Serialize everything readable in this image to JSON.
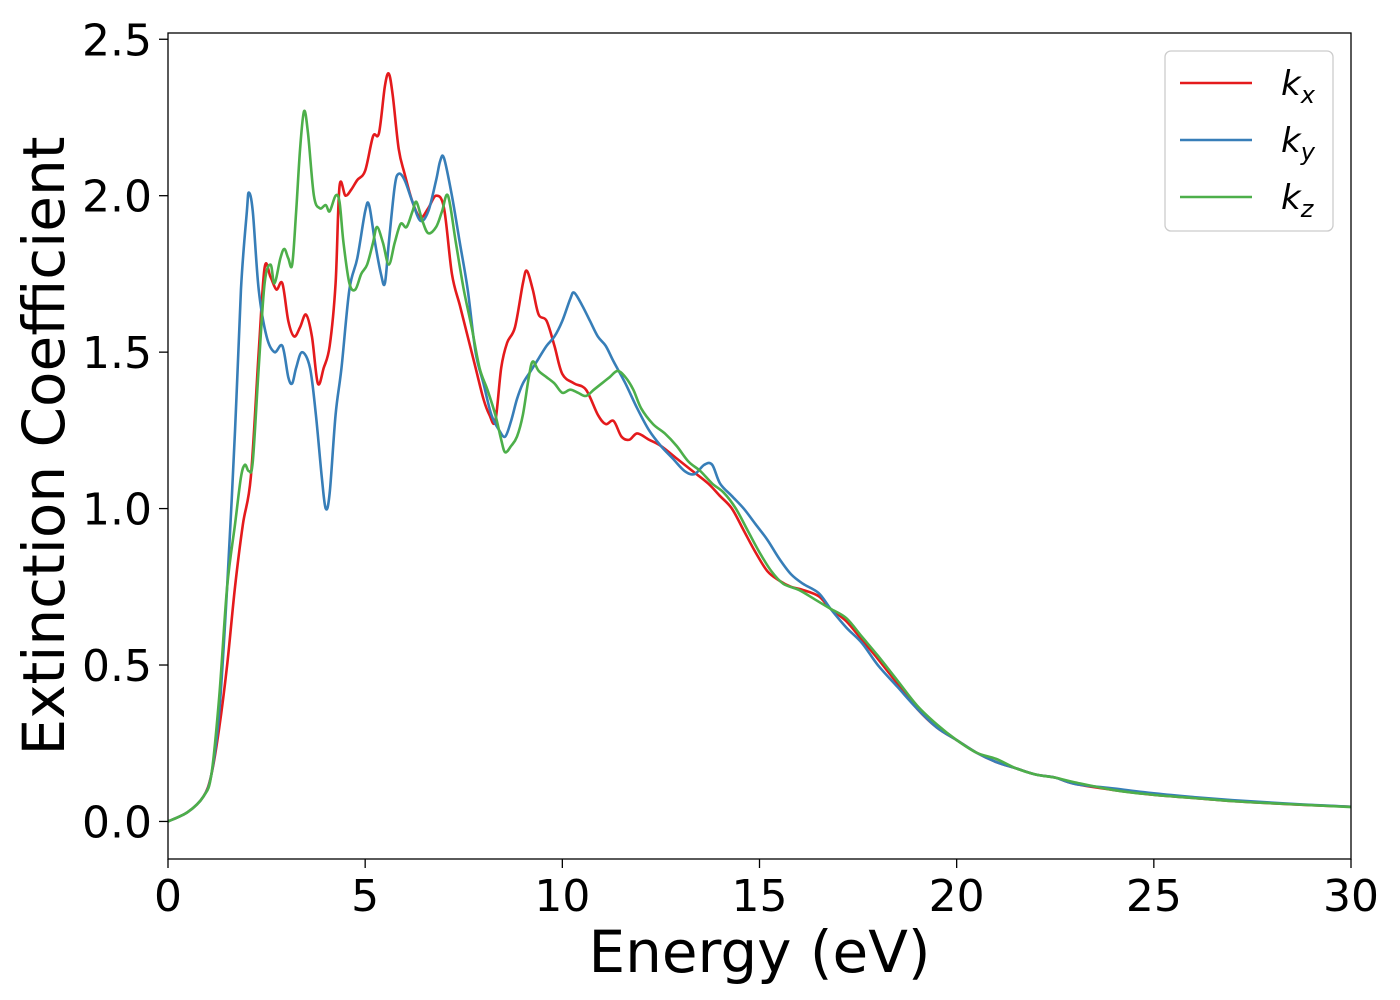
{
  "chart_data": {
    "type": "line",
    "title": "",
    "xlabel": "Energy (eV)",
    "ylabel": "Extinction Coefficient",
    "xlim": [
      0,
      30
    ],
    "ylim": [
      -0.12,
      2.52
    ],
    "xticks": [
      0,
      5,
      10,
      15,
      20,
      25,
      30
    ],
    "xtick_labels": [
      "0",
      "5",
      "10",
      "15",
      "20",
      "25",
      "30"
    ],
    "yticks": [
      0.0,
      0.5,
      1.0,
      1.5,
      2.0,
      2.5
    ],
    "ytick_labels": [
      "0.0",
      "0.5",
      "1.0",
      "1.5",
      "2.0",
      "2.5"
    ],
    "grid": false,
    "legend_position": "top-right",
    "series": [
      {
        "name": "k",
        "sub": "x",
        "color": "#e41a1c",
        "x": [
          0,
          0.5,
          0.9,
          1.1,
          1.3,
          1.5,
          1.7,
          1.9,
          2.1,
          2.3,
          2.45,
          2.6,
          2.75,
          2.9,
          3.05,
          3.2,
          3.35,
          3.5,
          3.65,
          3.8,
          3.95,
          4.1,
          4.25,
          4.35,
          4.5,
          4.65,
          4.8,
          5.0,
          5.2,
          5.35,
          5.5,
          5.6,
          5.7,
          5.85,
          6.0,
          6.2,
          6.4,
          6.6,
          6.8,
          7.0,
          7.2,
          7.4,
          7.6,
          7.8,
          8.0,
          8.15,
          8.3,
          8.45,
          8.6,
          8.8,
          9.0,
          9.1,
          9.25,
          9.4,
          9.6,
          9.8,
          10.0,
          10.3,
          10.6,
          10.9,
          11.1,
          11.3,
          11.5,
          11.7,
          11.9,
          12.2,
          12.5,
          12.9,
          13.3,
          13.7,
          14.0,
          14.3,
          14.6,
          14.9,
          15.2,
          15.5,
          15.8,
          16.1,
          16.5,
          16.8,
          17.2,
          17.6,
          18.0,
          18.5,
          19.0,
          19.5,
          20.0,
          20.5,
          21.0,
          21.5,
          22.0,
          22.5,
          23,
          24,
          25,
          26,
          27,
          28,
          29,
          30
        ],
        "y": [
          0.0,
          0.03,
          0.08,
          0.15,
          0.3,
          0.5,
          0.75,
          0.95,
          1.1,
          1.5,
          1.77,
          1.74,
          1.7,
          1.72,
          1.6,
          1.55,
          1.58,
          1.62,
          1.55,
          1.4,
          1.45,
          1.52,
          1.72,
          2.03,
          2.0,
          2.02,
          2.05,
          2.08,
          2.19,
          2.2,
          2.35,
          2.39,
          2.32,
          2.15,
          2.07,
          1.98,
          1.93,
          1.96,
          2.0,
          1.96,
          1.75,
          1.65,
          1.55,
          1.45,
          1.35,
          1.3,
          1.28,
          1.45,
          1.53,
          1.58,
          1.72,
          1.76,
          1.7,
          1.62,
          1.6,
          1.52,
          1.43,
          1.4,
          1.38,
          1.3,
          1.27,
          1.28,
          1.23,
          1.22,
          1.24,
          1.22,
          1.2,
          1.16,
          1.12,
          1.08,
          1.04,
          1.0,
          0.93,
          0.86,
          0.8,
          0.77,
          0.75,
          0.74,
          0.72,
          0.68,
          0.64,
          0.58,
          0.52,
          0.44,
          0.36,
          0.3,
          0.26,
          0.22,
          0.19,
          0.17,
          0.15,
          0.14,
          0.12,
          0.1,
          0.085,
          0.075,
          0.065,
          0.058,
          0.052,
          0.047
        ]
      },
      {
        "name": "k",
        "sub": "y",
        "color": "#377eb8",
        "x": [
          0,
          0.5,
          0.9,
          1.1,
          1.3,
          1.5,
          1.7,
          1.85,
          2.0,
          2.05,
          2.15,
          2.3,
          2.5,
          2.7,
          2.9,
          3.05,
          3.15,
          3.25,
          3.4,
          3.6,
          3.75,
          3.9,
          4.0,
          4.1,
          4.25,
          4.4,
          4.6,
          4.8,
          5.0,
          5.1,
          5.25,
          5.4,
          5.5,
          5.6,
          5.75,
          5.85,
          6.0,
          6.2,
          6.4,
          6.6,
          6.8,
          6.9,
          7.0,
          7.2,
          7.4,
          7.6,
          7.8,
          8.0,
          8.2,
          8.4,
          8.55,
          8.7,
          8.85,
          9.0,
          9.2,
          9.4,
          9.6,
          9.8,
          10.0,
          10.2,
          10.3,
          10.5,
          10.7,
          10.9,
          11.1,
          11.3,
          11.6,
          11.9,
          12.2,
          12.5,
          12.8,
          13.1,
          13.35,
          13.6,
          13.8,
          14.0,
          14.3,
          14.6,
          14.9,
          15.2,
          15.5,
          15.8,
          16.1,
          16.5,
          16.8,
          17.2,
          17.6,
          18.0,
          18.5,
          19.0,
          19.5,
          20.0,
          20.5,
          21.0,
          21.5,
          22.0,
          22.5,
          23,
          24,
          25,
          26,
          27,
          28,
          29,
          30
        ],
        "y": [
          0.0,
          0.03,
          0.08,
          0.15,
          0.35,
          0.75,
          1.25,
          1.7,
          1.95,
          2.01,
          1.95,
          1.7,
          1.55,
          1.5,
          1.52,
          1.42,
          1.4,
          1.45,
          1.5,
          1.45,
          1.3,
          1.1,
          1.0,
          1.05,
          1.3,
          1.45,
          1.7,
          1.8,
          1.95,
          1.97,
          1.85,
          1.75,
          1.72,
          1.85,
          2.03,
          2.07,
          2.05,
          1.98,
          1.92,
          1.95,
          2.05,
          2.11,
          2.12,
          2.0,
          1.85,
          1.7,
          1.5,
          1.4,
          1.3,
          1.25,
          1.23,
          1.28,
          1.35,
          1.4,
          1.44,
          1.48,
          1.52,
          1.55,
          1.6,
          1.67,
          1.69,
          1.65,
          1.6,
          1.55,
          1.52,
          1.47,
          1.4,
          1.32,
          1.25,
          1.2,
          1.16,
          1.12,
          1.11,
          1.14,
          1.14,
          1.08,
          1.04,
          1.0,
          0.95,
          0.9,
          0.84,
          0.79,
          0.76,
          0.73,
          0.68,
          0.62,
          0.57,
          0.5,
          0.43,
          0.36,
          0.3,
          0.26,
          0.22,
          0.19,
          0.17,
          0.15,
          0.14,
          0.12,
          0.105,
          0.09,
          0.078,
          0.068,
          0.06,
          0.053,
          0.047
        ]
      },
      {
        "name": "k",
        "sub": "z",
        "color": "#4daf4a",
        "x": [
          0,
          0.5,
          0.9,
          1.1,
          1.3,
          1.5,
          1.7,
          1.85,
          1.95,
          2.05,
          2.15,
          2.3,
          2.45,
          2.6,
          2.7,
          2.85,
          2.95,
          3.05,
          3.15,
          3.25,
          3.35,
          3.45,
          3.55,
          3.7,
          3.85,
          4.0,
          4.1,
          4.25,
          4.35,
          4.45,
          4.6,
          4.75,
          4.9,
          5.05,
          5.2,
          5.3,
          5.45,
          5.6,
          5.75,
          5.9,
          6.05,
          6.2,
          6.3,
          6.45,
          6.6,
          6.8,
          6.95,
          7.1,
          7.3,
          7.5,
          7.7,
          7.9,
          8.1,
          8.3,
          8.45,
          8.55,
          8.7,
          8.85,
          9.0,
          9.15,
          9.25,
          9.4,
          9.6,
          9.8,
          10.0,
          10.2,
          10.4,
          10.6,
          10.8,
          11.0,
          11.2,
          11.4,
          11.6,
          11.8,
          12.0,
          12.3,
          12.6,
          12.9,
          13.2,
          13.5,
          13.8,
          14.1,
          14.4,
          14.7,
          15.0,
          15.3,
          15.6,
          16.0,
          16.4,
          16.8,
          17.2,
          17.6,
          18.0,
          18.5,
          19.0,
          19.5,
          20.0,
          20.5,
          21.0,
          21.5,
          22.0,
          22.5,
          23,
          24,
          25,
          26,
          27,
          28,
          29,
          30
        ],
        "y": [
          0.0,
          0.03,
          0.08,
          0.15,
          0.4,
          0.75,
          0.95,
          1.1,
          1.14,
          1.12,
          1.15,
          1.45,
          1.72,
          1.78,
          1.72,
          1.8,
          1.83,
          1.8,
          1.78,
          1.95,
          2.15,
          2.27,
          2.2,
          2.0,
          1.96,
          1.97,
          1.95,
          2.0,
          1.98,
          1.85,
          1.72,
          1.7,
          1.75,
          1.78,
          1.85,
          1.9,
          1.85,
          1.78,
          1.85,
          1.91,
          1.9,
          1.95,
          1.98,
          1.92,
          1.88,
          1.9,
          1.95,
          2.0,
          1.85,
          1.7,
          1.58,
          1.45,
          1.38,
          1.3,
          1.22,
          1.18,
          1.2,
          1.23,
          1.3,
          1.42,
          1.47,
          1.44,
          1.42,
          1.4,
          1.37,
          1.38,
          1.37,
          1.36,
          1.38,
          1.4,
          1.42,
          1.44,
          1.42,
          1.38,
          1.32,
          1.27,
          1.24,
          1.2,
          1.15,
          1.12,
          1.08,
          1.05,
          1.0,
          0.93,
          0.86,
          0.8,
          0.76,
          0.74,
          0.71,
          0.68,
          0.65,
          0.59,
          0.53,
          0.45,
          0.37,
          0.31,
          0.26,
          0.22,
          0.2,
          0.17,
          0.15,
          0.14,
          0.125,
          0.1,
          0.085,
          0.075,
          0.065,
          0.058,
          0.052,
          0.046
        ]
      }
    ]
  }
}
